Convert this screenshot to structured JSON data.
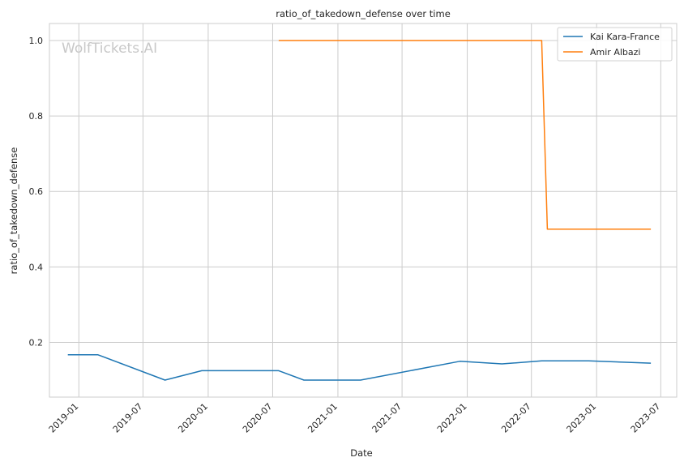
{
  "chart_data": {
    "type": "line",
    "title": "ratio_of_takedown_defense over time",
    "xlabel": "Date",
    "ylabel": "ratio_of_takedown_defense",
    "watermark": "WolfTickets.AI",
    "x_ticks": [
      "2019-01",
      "2019-07",
      "2020-01",
      "2020-07",
      "2021-01",
      "2021-07",
      "2022-01",
      "2022-07",
      "2023-01",
      "2023-07"
    ],
    "y_ticks": [
      0.2,
      0.4,
      0.6,
      0.8,
      1.0
    ],
    "y_tick_labels": [
      "0.2",
      "0.4",
      "0.6",
      "0.8",
      "1.0"
    ],
    "xlim": [
      "2018-10-10",
      "2023-08-15"
    ],
    "ylim": [
      0.055,
      1.045
    ],
    "grid": true,
    "legend_position": "top-right",
    "series": [
      {
        "name": "Kai Kara-France",
        "color": "#1f77b4",
        "step": false,
        "points": [
          {
            "x": "2018-12-01",
            "y": 0.167
          },
          {
            "x": "2019-02-24",
            "y": 0.167
          },
          {
            "x": "2019-09-01",
            "y": 0.1
          },
          {
            "x": "2019-12-14",
            "y": 0.125
          },
          {
            "x": "2020-07-18",
            "y": 0.125
          },
          {
            "x": "2020-09-27",
            "y": 0.1
          },
          {
            "x": "2021-03-06",
            "y": 0.1
          },
          {
            "x": "2021-12-11",
            "y": 0.15
          },
          {
            "x": "2022-04-09",
            "y": 0.143
          },
          {
            "x": "2022-07-30",
            "y": 0.151
          },
          {
            "x": "2022-12-10",
            "y": 0.151
          },
          {
            "x": "2023-06-03",
            "y": 0.145
          }
        ]
      },
      {
        "name": "Amir Albazi",
        "color": "#ff7f0e",
        "step": true,
        "points": [
          {
            "x": "2020-07-18",
            "y": 1.0
          },
          {
            "x": "2022-07-30",
            "y": 1.0
          },
          {
            "x": "2022-08-15",
            "y": 0.5
          },
          {
            "x": "2023-06-03",
            "y": 0.5
          }
        ]
      }
    ]
  }
}
